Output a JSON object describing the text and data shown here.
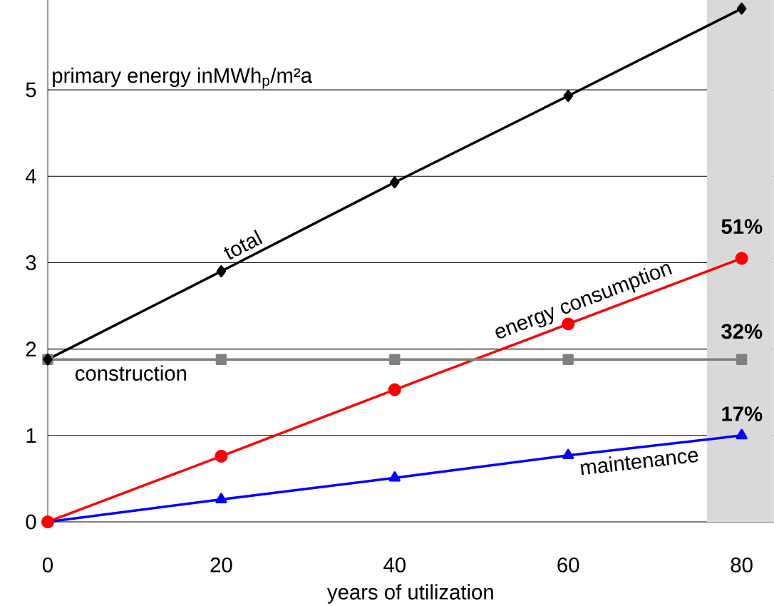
{
  "chart_data": {
    "type": "line",
    "ylabel": "primary energy inMWh$_{p}$/m²a",
    "xlabel": "years of utilization",
    "x": [
      0,
      20,
      40,
      60,
      80
    ],
    "series": [
      {
        "name": "total",
        "color": "#000000",
        "marker": "diamond",
        "values": [
          1.88,
          2.9,
          3.93,
          4.93,
          5.94
        ]
      },
      {
        "name": "construction",
        "color": "#808080",
        "marker": "square",
        "values": [
          1.88,
          1.88,
          1.88,
          1.88,
          1.88
        ]
      },
      {
        "name": "energy consumption",
        "color": "#ff0000",
        "marker": "circle",
        "values": [
          0,
          0.76,
          1.53,
          2.29,
          3.05
        ]
      },
      {
        "name": "maintenance",
        "color": "#0000ff",
        "marker": "triangle",
        "values": [
          0,
          0.26,
          0.51,
          0.77,
          1.0
        ]
      }
    ],
    "xlim": [
      0,
      83.7
    ],
    "ylim": [
      0,
      6.04
    ],
    "xticks": [
      0,
      20,
      40,
      60,
      80
    ],
    "yticks": [
      0,
      1,
      2,
      3,
      4,
      5
    ],
    "grid": "y",
    "legend": false,
    "bands": [
      {
        "axis": "x",
        "from": 76,
        "to": 83.7,
        "color": "#d9d9d9"
      }
    ],
    "annotations": [
      "51%",
      "32%",
      "17%"
    ]
  }
}
